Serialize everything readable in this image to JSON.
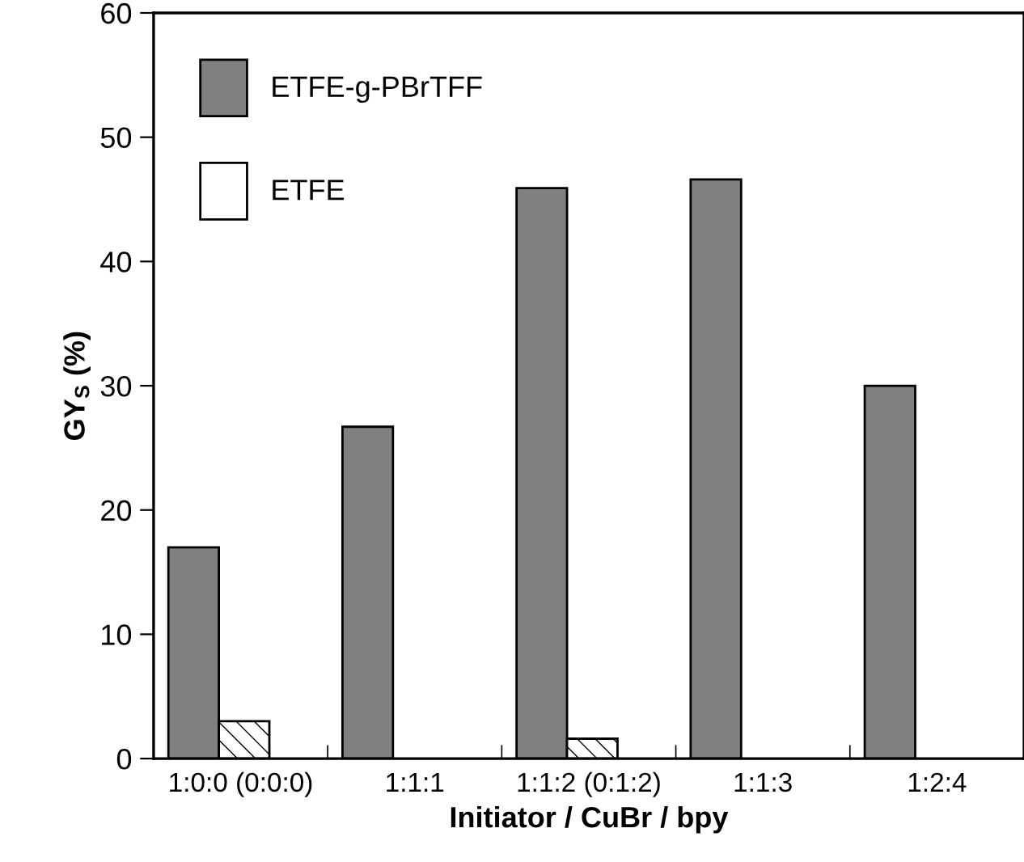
{
  "chart_data": {
    "type": "bar",
    "categories": [
      "1:0:0 (0:0:0)",
      "1:1:1",
      "1:1:2 (0:1:2)",
      "1:1:3",
      "1:2:4"
    ],
    "series": [
      {
        "name": "ETFE-g-PBrTFF",
        "color": "#808080",
        "values": [
          17,
          26.7,
          45.9,
          46.6,
          30
        ]
      },
      {
        "name": "ETFE",
        "color": "#ffffff",
        "values": [
          3,
          null,
          1.6,
          null,
          null
        ]
      }
    ],
    "xlabel": "Initiator / CuBr / bpy",
    "ylabel": "GY$_{S}$ (%)",
    "ylim": [
      0,
      60
    ],
    "yticks": [
      0,
      10,
      20,
      30,
      40,
      50,
      60
    ],
    "legend": "top left",
    "grid": false
  }
}
